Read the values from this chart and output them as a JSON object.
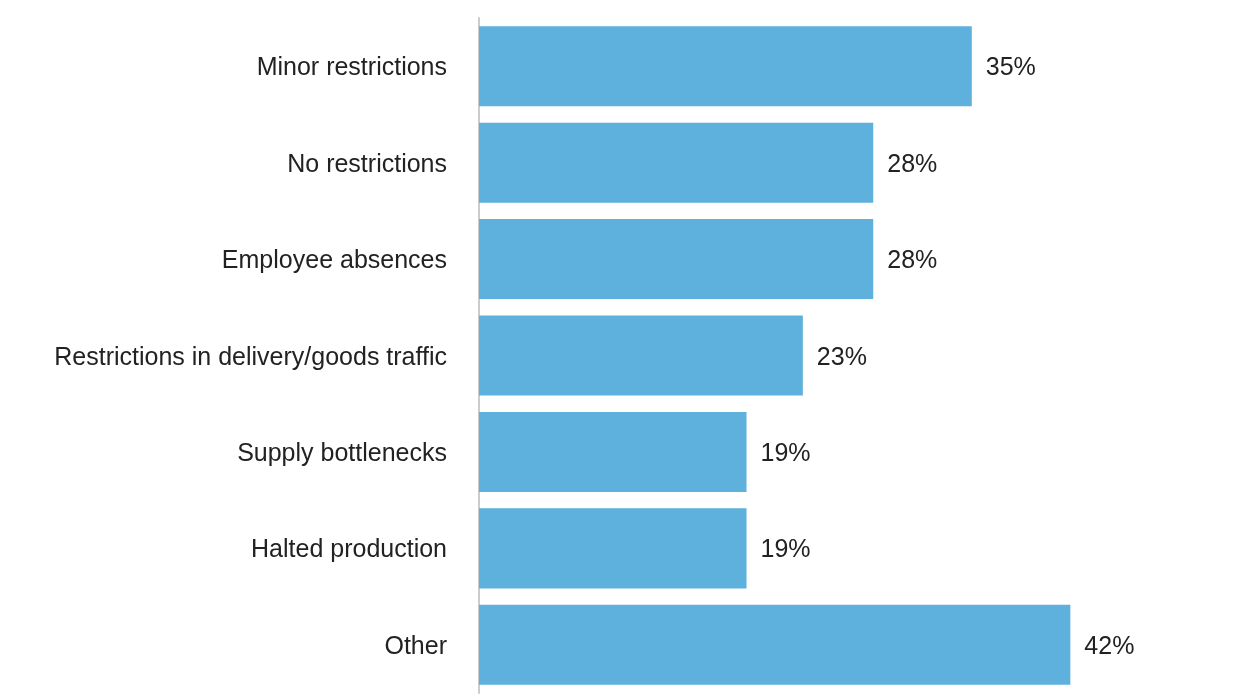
{
  "chart_data": {
    "type": "bar",
    "orientation": "horizontal",
    "categories": [
      "Minor restrictions",
      "No restrictions",
      "Employee absences",
      "Restrictions in delivery/goods traffic",
      "Supply bottlenecks",
      "Halted production",
      "Other"
    ],
    "values": [
      35,
      28,
      28,
      23,
      19,
      19,
      42
    ],
    "value_labels": [
      "35%",
      "28%",
      "28%",
      "23%",
      "19%",
      "19%",
      "42%"
    ],
    "color": "#5eb1dd",
    "tick_labels": "y"
  }
}
